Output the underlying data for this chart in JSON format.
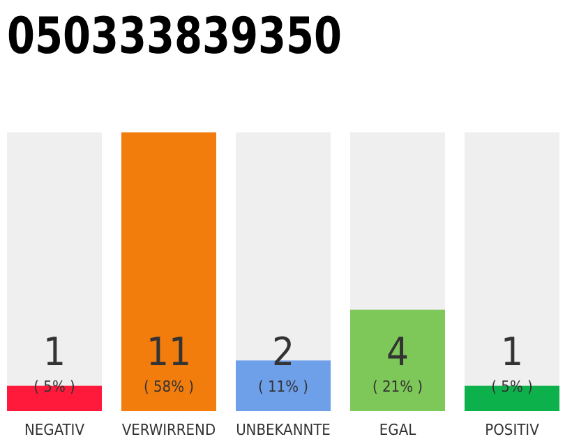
{
  "chart_data": {
    "type": "bar",
    "title": "050333839350",
    "categories": [
      "NEGATIV",
      "VERWIRREND",
      "UNBEKANNTE",
      "EGAL",
      "POSITIV"
    ],
    "values": [
      1,
      11,
      2,
      4,
      1
    ],
    "colors": [
      "#ff1a3c",
      "#f27d0c",
      "#6ea0ea",
      "#7ec85a",
      "#0cb14b"
    ],
    "ylim": [
      0,
      11
    ],
    "tick_labels": "x",
    "data_labels": true,
    "annotations": [
      "( 5% )",
      "( 58% )",
      "( 11% )",
      "( 21% )",
      "( 5% )"
    ]
  }
}
